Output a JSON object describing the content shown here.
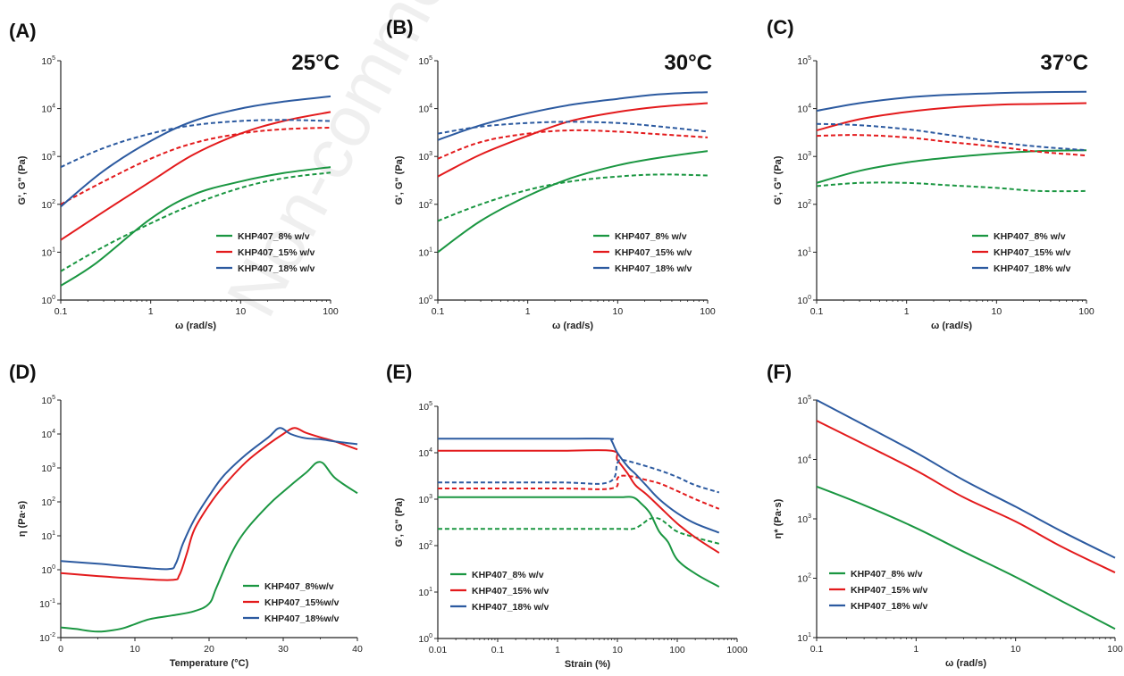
{
  "figure": {
    "watermark": "Non-commercial"
  },
  "chart_data": [
    {
      "panel": "(A)",
      "type": "line",
      "annotation": "25°C",
      "xlabel": "ω (rad/s)",
      "ylabel": "G', G\" (Pa)",
      "xscale": "log",
      "yscale": "log",
      "xlim": [
        0.1,
        100
      ],
      "ylim": [
        1,
        100000
      ],
      "xticks": [
        0.1,
        1,
        10,
        100
      ],
      "xtick_labels": [
        "0.1",
        "1",
        "10",
        "100"
      ],
      "yticks": [
        1,
        10,
        100,
        1000,
        10000,
        100000
      ],
      "legend": "lower-right",
      "series": [
        {
          "name": "KHP407_8% w/v",
          "color": "#1a9641",
          "style": "solid",
          "x": [
            0.1,
            0.25,
            1,
            3,
            10,
            30,
            100
          ],
          "y": [
            2,
            6,
            50,
            160,
            300,
            450,
            600
          ]
        },
        {
          "name": "",
          "color": "#1a9641",
          "style": "dashed",
          "x": [
            0.1,
            0.3,
            1,
            3,
            10,
            30,
            100
          ],
          "y": [
            4,
            13,
            40,
            100,
            220,
            350,
            460
          ]
        },
        {
          "name": "KHP407_15% w/v",
          "color": "#e31a1c",
          "style": "solid",
          "x": [
            0.1,
            0.3,
            1,
            3,
            10,
            30,
            100
          ],
          "y": [
            18,
            70,
            300,
            1100,
            3000,
            5500,
            8500
          ]
        },
        {
          "name": "",
          "color": "#e31a1c",
          "style": "dashed",
          "x": [
            0.1,
            0.3,
            1,
            3,
            10,
            30,
            100
          ],
          "y": [
            100,
            300,
            900,
            1900,
            3000,
            3700,
            4000
          ]
        },
        {
          "name": "KHP407_18% w/v",
          "color": "#2c5aa0",
          "style": "solid",
          "x": [
            0.1,
            0.3,
            1,
            3,
            10,
            30,
            100
          ],
          "y": [
            90,
            500,
            2100,
            5500,
            10000,
            14000,
            18000
          ]
        },
        {
          "name": "",
          "color": "#2c5aa0",
          "style": "dashed",
          "x": [
            0.1,
            0.3,
            1,
            3,
            10,
            30,
            100
          ],
          "y": [
            600,
            1500,
            3000,
            4500,
            5500,
            5800,
            5500
          ]
        }
      ]
    },
    {
      "panel": "(B)",
      "type": "line",
      "annotation": "30°C",
      "xlabel": "ω (rad/s)",
      "ylabel": "G', G\" (Pa)",
      "xscale": "log",
      "yscale": "log",
      "xlim": [
        0.1,
        100
      ],
      "ylim": [
        1,
        100000
      ],
      "xticks": [
        0.1,
        1,
        10,
        100
      ],
      "xtick_labels": [
        "0.1",
        "1",
        "10",
        "100"
      ],
      "yticks": [
        1,
        10,
        100,
        1000,
        10000,
        100000
      ],
      "legend": "lower-right",
      "series": [
        {
          "name": "KHP407_8% w/v",
          "color": "#1a9641",
          "style": "solid",
          "x": [
            0.1,
            0.3,
            1,
            3,
            10,
            30,
            100
          ],
          "y": [
            10,
            45,
            150,
            350,
            650,
            950,
            1300
          ]
        },
        {
          "name": "",
          "color": "#1a9641",
          "style": "dashed",
          "x": [
            0.1,
            0.3,
            1,
            3,
            10,
            30,
            100
          ],
          "y": [
            45,
            100,
            200,
            300,
            380,
            420,
            400
          ]
        },
        {
          "name": "KHP407_15% w/v",
          "color": "#e31a1c",
          "style": "solid",
          "x": [
            0.1,
            0.3,
            1,
            3,
            10,
            30,
            100
          ],
          "y": [
            380,
            1100,
            2700,
            5500,
            8500,
            11000,
            13000
          ]
        },
        {
          "name": "",
          "color": "#e31a1c",
          "style": "dashed",
          "x": [
            0.1,
            0.3,
            1,
            3,
            10,
            30,
            100
          ],
          "y": [
            900,
            2000,
            3000,
            3500,
            3300,
            2900,
            2500
          ]
        },
        {
          "name": "KHP407_18% w/v",
          "color": "#2c5aa0",
          "style": "solid",
          "x": [
            0.1,
            0.3,
            1,
            3,
            10,
            30,
            100
          ],
          "y": [
            2200,
            4500,
            8000,
            12000,
            16000,
            20000,
            22000
          ]
        },
        {
          "name": "",
          "color": "#2c5aa0",
          "style": "dashed",
          "x": [
            0.1,
            0.3,
            1,
            3,
            10,
            30,
            100
          ],
          "y": [
            3000,
            4200,
            5000,
            5300,
            5000,
            4200,
            3300
          ]
        }
      ]
    },
    {
      "panel": "(C)",
      "type": "line",
      "annotation": "37°C",
      "xlabel": "ω (rad/s)",
      "ylabel": "G', G\" (Pa)",
      "xscale": "log",
      "yscale": "log",
      "xlim": [
        0.1,
        100
      ],
      "ylim": [
        1,
        100000
      ],
      "xticks": [
        0.1,
        1,
        10,
        100
      ],
      "xtick_labels": [
        "0.1",
        "1",
        "10",
        "100"
      ],
      "yticks": [
        1,
        10,
        100,
        1000,
        10000,
        100000
      ],
      "legend": "lower-right",
      "series": [
        {
          "name": "KHP407_8% w/v",
          "color": "#1a9641",
          "style": "solid",
          "x": [
            0.1,
            0.3,
            1,
            3,
            10,
            30,
            100
          ],
          "y": [
            280,
            500,
            750,
            950,
            1150,
            1300,
            1350
          ]
        },
        {
          "name": "",
          "color": "#1a9641",
          "style": "dashed",
          "x": [
            0.1,
            0.3,
            1,
            3,
            10,
            30,
            100
          ],
          "y": [
            240,
            280,
            280,
            250,
            220,
            190,
            190
          ]
        },
        {
          "name": "KHP407_15% w/v",
          "color": "#e31a1c",
          "style": "solid",
          "x": [
            0.1,
            0.3,
            1,
            3,
            10,
            30,
            100
          ],
          "y": [
            3500,
            6000,
            8500,
            10500,
            12000,
            12500,
            13000
          ]
        },
        {
          "name": "",
          "color": "#e31a1c",
          "style": "dashed",
          "x": [
            0.1,
            0.3,
            1,
            3,
            10,
            30,
            100
          ],
          "y": [
            2700,
            2800,
            2500,
            2000,
            1600,
            1250,
            1050
          ]
        },
        {
          "name": "KHP407_18% w/v",
          "color": "#2c5aa0",
          "style": "solid",
          "x": [
            0.1,
            0.3,
            1,
            3,
            10,
            30,
            100
          ],
          "y": [
            9000,
            13000,
            17000,
            19500,
            21000,
            22000,
            22500
          ]
        },
        {
          "name": "",
          "color": "#2c5aa0",
          "style": "dashed",
          "x": [
            0.1,
            0.3,
            1,
            3,
            10,
            30,
            100
          ],
          "y": [
            4800,
            4500,
            3700,
            2800,
            2000,
            1600,
            1350
          ]
        }
      ]
    },
    {
      "panel": "(D)",
      "type": "line",
      "xlabel": "Temperature (°C)",
      "ylabel": "η (Pa·s)",
      "xscale": "linear",
      "yscale": "log",
      "xlim": [
        0,
        40
      ],
      "ylim": [
        0.01,
        100000
      ],
      "xticks": [
        0,
        10,
        20,
        30,
        40
      ],
      "xtick_labels": [
        "0",
        "10",
        "20",
        "30",
        "40"
      ],
      "yticks": [
        0.01,
        0.1,
        1,
        10,
        100,
        1000,
        10000,
        100000
      ],
      "legend": "lower-right",
      "series": [
        {
          "name": "KHP407_8%w/v",
          "color": "#1a9641",
          "style": "solid",
          "x": [
            0,
            2,
            5,
            8,
            10,
            12,
            15,
            18,
            20,
            21,
            23,
            25,
            28,
            30,
            33,
            35,
            37,
            40
          ],
          "y": [
            0.02,
            0.018,
            0.015,
            0.018,
            0.025,
            0.035,
            0.045,
            0.06,
            0.1,
            0.3,
            3,
            15,
            80,
            200,
            700,
            1500,
            500,
            180
          ]
        },
        {
          "name": "KHP407_15%w/v",
          "color": "#e31a1c",
          "style": "solid",
          "x": [
            0,
            5,
            10,
            15,
            16,
            17,
            18,
            20,
            22,
            25,
            28,
            30,
            31.5,
            33,
            35,
            37,
            40
          ],
          "y": [
            0.8,
            0.65,
            0.55,
            0.5,
            0.7,
            3,
            15,
            80,
            300,
            1500,
            5000,
            10000,
            15000,
            11000,
            8000,
            6000,
            3500
          ]
        },
        {
          "name": "KHP407_18%w/v",
          "color": "#2c5aa0",
          "style": "solid",
          "x": [
            0,
            5,
            10,
            14.5,
            15.5,
            16.5,
            18,
            20,
            22,
            25,
            28,
            29.5,
            31,
            33,
            35,
            37,
            40
          ],
          "y": [
            1.8,
            1.5,
            1.2,
            1.05,
            1.5,
            6,
            30,
            150,
            600,
            2500,
            8000,
            15000,
            10000,
            7500,
            7000,
            6000,
            5000
          ]
        }
      ]
    },
    {
      "panel": "(E)",
      "type": "line",
      "xlabel": "Strain (%)",
      "ylabel": "G', G\" (Pa)",
      "xscale": "log",
      "yscale": "log",
      "xlim": [
        0.01,
        1000
      ],
      "ylim": [
        1,
        100000
      ],
      "xticks": [
        0.01,
        0.1,
        1,
        10,
        100,
        1000
      ],
      "xtick_labels": [
        "0.01",
        "0.1",
        "1",
        "10",
        "100",
        "1000"
      ],
      "yticks": [
        1,
        10,
        100,
        1000,
        10000,
        100000
      ],
      "legend": "lower-left",
      "series": [
        {
          "name": "KHP407_8% w/v",
          "color": "#1a9641",
          "style": "solid",
          "x": [
            0.01,
            1,
            10,
            18,
            25,
            35,
            50,
            70,
            100,
            200,
            500
          ],
          "y": [
            1100,
            1100,
            1100,
            1100,
            800,
            500,
            200,
            120,
            50,
            25,
            13
          ]
        },
        {
          "name": "",
          "color": "#1a9641",
          "style": "dashed",
          "x": [
            0.01,
            1,
            10,
            18,
            25,
            35,
            50,
            70,
            100,
            200,
            500
          ],
          "y": [
            230,
            230,
            230,
            230,
            280,
            380,
            380,
            280,
            200,
            150,
            110
          ]
        },
        {
          "name": "KHP407_15% w/v",
          "color": "#e31a1c",
          "style": "solid",
          "x": [
            0.01,
            1,
            8,
            10,
            15,
            20,
            30,
            50,
            100,
            200,
            500
          ],
          "y": [
            11000,
            11000,
            11000,
            7000,
            3500,
            2000,
            1300,
            700,
            300,
            150,
            70
          ]
        },
        {
          "name": "",
          "color": "#e31a1c",
          "style": "dashed",
          "x": [
            0.01,
            1,
            8,
            10,
            12,
            20,
            30,
            50,
            100,
            200,
            500
          ],
          "y": [
            1700,
            1700,
            1700,
            2800,
            3200,
            3000,
            2600,
            2200,
            1500,
            1000,
            620
          ]
        },
        {
          "name": "KHP407_18% w/v",
          "color": "#2c5aa0",
          "style": "solid",
          "x": [
            0.01,
            1,
            7,
            8,
            10,
            15,
            20,
            30,
            50,
            100,
            200,
            500
          ],
          "y": [
            20000,
            20000,
            20000,
            18000,
            10000,
            5000,
            3500,
            2000,
            1000,
            500,
            300,
            190
          ]
        },
        {
          "name": "",
          "color": "#2c5aa0",
          "style": "dashed",
          "x": [
            0.01,
            1,
            7,
            10,
            12,
            20,
            50,
            100,
            200,
            500
          ],
          "y": [
            2300,
            2300,
            2300,
            6000,
            7000,
            6000,
            4200,
            3000,
            2000,
            1400
          ]
        }
      ]
    },
    {
      "panel": "(F)",
      "type": "line",
      "xlabel": "ω (rad/s)",
      "ylabel": "η* (Pa·s)",
      "xscale": "log",
      "yscale": "log",
      "xlim": [
        0.1,
        100
      ],
      "ylim": [
        10,
        100000
      ],
      "xticks": [
        0.1,
        1,
        10,
        100
      ],
      "xtick_labels": [
        "0.1",
        "1",
        "10",
        "100"
      ],
      "yticks": [
        10,
        100,
        1000,
        10000,
        100000
      ],
      "legend": "lower-left",
      "series": [
        {
          "name": "KHP407_8% w/v",
          "color": "#1a9641",
          "style": "solid",
          "x": [
            0.1,
            0.3,
            1,
            3,
            10,
            30,
            100
          ],
          "y": [
            3500,
            1700,
            700,
            280,
            105,
            40,
            14
          ]
        },
        {
          "name": "KHP407_15% w/v",
          "color": "#e31a1c",
          "style": "solid",
          "x": [
            0.1,
            0.3,
            1,
            3,
            10,
            30,
            100
          ],
          "y": [
            45000,
            18000,
            6500,
            2300,
            900,
            330,
            125
          ]
        },
        {
          "name": "KHP407_18% w/v",
          "color": "#2c5aa0",
          "style": "solid",
          "x": [
            0.1,
            0.3,
            1,
            3,
            10,
            30,
            100
          ],
          "y": [
            100000,
            38000,
            13000,
            4500,
            1600,
            600,
            220
          ]
        }
      ]
    }
  ]
}
